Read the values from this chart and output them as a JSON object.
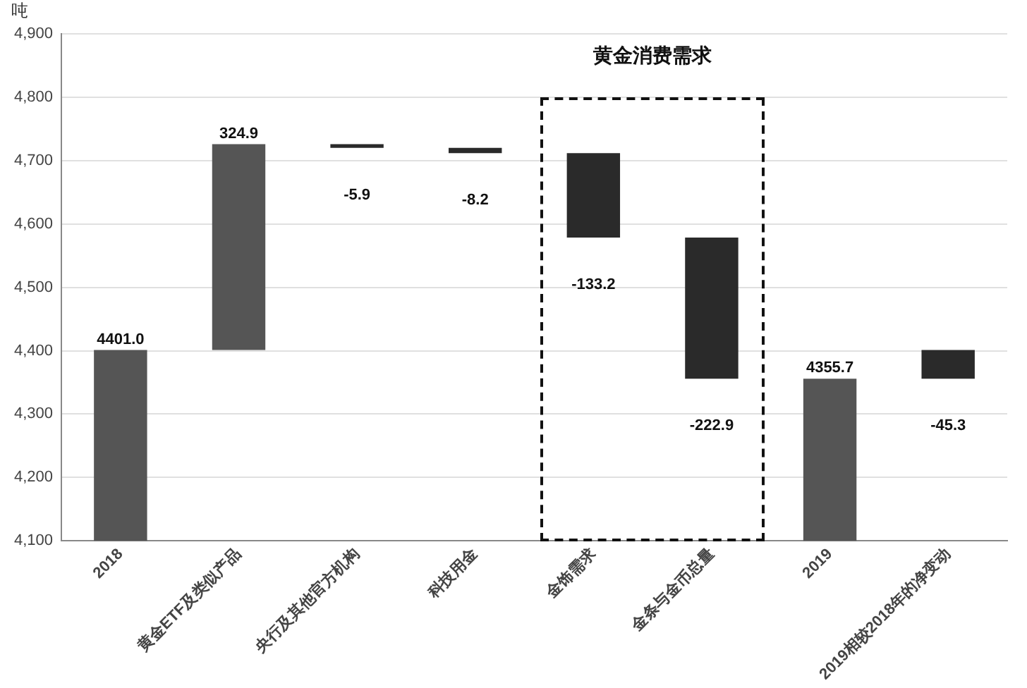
{
  "chart_data": {
    "type": "bar",
    "ylabel": "吨",
    "categories": [
      "2018",
      "黄金ETF及类似产品",
      "央行及其他官方机构",
      "科技用金",
      "金饰需求",
      "金条与金币总量",
      "2019",
      "2019相较2018年的净变动"
    ],
    "values": [
      4401.0,
      324.9,
      -5.9,
      -8.2,
      -133.2,
      -222.9,
      4355.7,
      -45.3
    ],
    "base": [
      null,
      4401.0,
      4725.9,
      4720.0,
      4711.8,
      4578.6,
      null,
      4401.0
    ],
    "colors": [
      "#555555",
      "#555555",
      "#2a2a2a",
      "#2a2a2a",
      "#2a2a2a",
      "#2a2a2a",
      "#555555",
      "#2a2a2a"
    ],
    "value_labels": [
      "4401.0",
      "324.9",
      "-5.9",
      "-8.2",
      "-133.2",
      "-222.9",
      "4355.7",
      "-45.3"
    ],
    "ylim": [
      4100,
      4900
    ],
    "yticks": [
      {
        "value": 4100,
        "label": "4,100"
      },
      {
        "value": 4200,
        "label": "4,200"
      },
      {
        "value": 4300,
        "label": "4,300"
      },
      {
        "value": 4400,
        "label": "4,400"
      },
      {
        "value": 4500,
        "label": "4,500"
      },
      {
        "value": 4600,
        "label": "4,600"
      },
      {
        "value": 4700,
        "label": "4,700"
      },
      {
        "value": 4800,
        "label": "4,800"
      },
      {
        "value": 4900,
        "label": "4,900"
      }
    ],
    "annotations": [
      "黄金消费需求"
    ],
    "grid": "y",
    "legend": false
  }
}
